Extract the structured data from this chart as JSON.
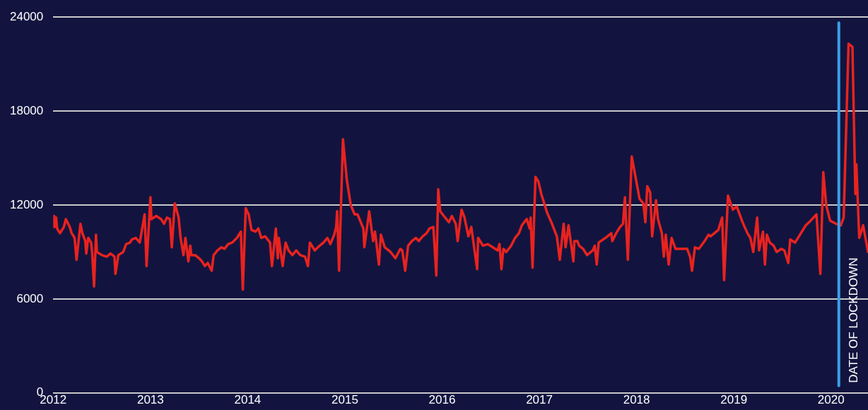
{
  "chart_data": {
    "type": "line",
    "color": "#e8231f",
    "marker": "none",
    "grid": "y",
    "xlim": [
      2012,
      2020.38
    ],
    "xticks": [
      2012,
      2013,
      2014,
      2015,
      2016,
      2017,
      2018,
      2019,
      2020
    ],
    "ylim": [
      0,
      24000
    ],
    "yticks": [
      0,
      6000,
      12000,
      18000,
      24000
    ],
    "x": [
      2012.0,
      2012.01,
      2012.02,
      2012.03,
      2012.04,
      2012.07,
      2012.11,
      2012.13,
      2012.17,
      2012.19,
      2012.22,
      2012.24,
      2012.28,
      2012.3,
      2012.33,
      2012.34,
      2012.36,
      2012.39,
      2012.4,
      2012.42,
      2012.44,
      2012.45,
      2012.5,
      2012.55,
      2012.59,
      2012.63,
      2012.64,
      2012.67,
      2012.72,
      2012.75,
      2012.79,
      2012.81,
      2012.85,
      2012.89,
      2012.94,
      2012.96,
      2013.0,
      2013.01,
      2013.06,
      2013.11,
      2013.14,
      2013.17,
      2013.2,
      2013.22,
      2013.25,
      2013.29,
      2013.31,
      2013.34,
      2013.36,
      2013.39,
      2013.41,
      2013.42,
      2013.46,
      2013.5,
      2013.53,
      2013.56,
      2013.59,
      2013.63,
      2013.65,
      2013.69,
      2013.73,
      2013.76,
      2013.8,
      2013.84,
      2013.89,
      2013.93,
      2013.95,
      2013.98,
      2014.01,
      2014.04,
      2014.08,
      2014.11,
      2014.14,
      2014.18,
      2014.23,
      2014.25,
      2014.29,
      2014.31,
      2014.32,
      2014.36,
      2014.39,
      2014.42,
      2014.46,
      2014.5,
      2014.54,
      2014.59,
      2014.62,
      2014.64,
      2014.69,
      2014.74,
      2014.78,
      2014.82,
      2014.85,
      2014.89,
      2014.91,
      2014.92,
      2014.94,
      2014.98,
      2015.02,
      2015.06,
      2015.1,
      2015.13,
      2015.19,
      2015.2,
      2015.25,
      2015.29,
      2015.31,
      2015.35,
      2015.37,
      2015.41,
      2015.47,
      2015.52,
      2015.57,
      2015.59,
      2015.62,
      2015.65,
      2015.69,
      2015.73,
      2015.76,
      2015.8,
      2015.84,
      2015.87,
      2015.91,
      2015.94,
      2015.96,
      2015.98,
      2016.03,
      2016.07,
      2016.1,
      2016.14,
      2016.16,
      2016.2,
      2016.23,
      2016.27,
      2016.3,
      2016.36,
      2016.37,
      2016.42,
      2016.47,
      2016.52,
      2016.57,
      2016.59,
      2016.61,
      2016.63,
      2016.66,
      2016.71,
      2016.75,
      2016.79,
      2016.82,
      2016.87,
      2016.9,
      2016.91,
      2016.93,
      2016.96,
      2016.99,
      2017.02,
      2017.08,
      2017.13,
      2017.18,
      2017.21,
      2017.25,
      2017.27,
      2017.3,
      2017.35,
      2017.36,
      2017.39,
      2017.41,
      2017.45,
      2017.49,
      2017.55,
      2017.57,
      2017.59,
      2017.61,
      2017.68,
      2017.74,
      2017.75,
      2017.79,
      2017.83,
      2017.86,
      2017.88,
      2017.91,
      2017.95,
      2017.98,
      2018.03,
      2018.07,
      2018.09,
      2018.11,
      2018.14,
      2018.16,
      2018.2,
      2018.22,
      2018.26,
      2018.28,
      2018.3,
      2018.33,
      2018.36,
      2018.4,
      2018.47,
      2018.52,
      2018.55,
      2018.57,
      2018.6,
      2018.64,
      2018.7,
      2018.74,
      2018.76,
      2018.8,
      2018.84,
      2018.88,
      2018.9,
      2018.94,
      2018.99,
      2019.03,
      2019.09,
      2019.14,
      2019.17,
      2019.2,
      2019.24,
      2019.26,
      2019.3,
      2019.32,
      2019.34,
      2019.37,
      2019.41,
      2019.44,
      2019.49,
      2019.52,
      2019.56,
      2019.58,
      2019.63,
      2019.68,
      2019.74,
      2019.79,
      2019.85,
      2019.89,
      2019.92,
      2019.95,
      2019.99,
      2020.05,
      2020.1,
      2020.13,
      2020.18,
      2020.22,
      2020.25,
      2020.26,
      2020.29,
      2020.33,
      2020.38
    ],
    "values": [
      10600,
      11300,
      10600,
      11200,
      10500,
      10200,
      10600,
      11100,
      10600,
      10200,
      9900,
      8500,
      10800,
      10200,
      9700,
      8900,
      9900,
      9600,
      9000,
      6800,
      10100,
      9000,
      8800,
      8700,
      8900,
      8700,
      7600,
      8800,
      9000,
      9500,
      9600,
      9800,
      9900,
      9600,
      11400,
      8100,
      12500,
      11100,
      11300,
      11100,
      10800,
      11200,
      11100,
      9300,
      12100,
      11200,
      9900,
      8800,
      9900,
      8400,
      9400,
      8800,
      8800,
      8600,
      8400,
      8100,
      8300,
      7800,
      8800,
      9100,
      9300,
      9200,
      9500,
      9600,
      9900,
      10300,
      6600,
      11800,
      11400,
      10400,
      10300,
      10500,
      9900,
      10000,
      9600,
      8100,
      10500,
      8600,
      9900,
      8100,
      9600,
      9100,
      8800,
      9100,
      8800,
      8700,
      8100,
      9600,
      9100,
      9400,
      9600,
      9900,
      9500,
      10100,
      10600,
      11600,
      7800,
      16200,
      13600,
      12000,
      11400,
      11400,
      10500,
      9300,
      11600,
      9700,
      10300,
      8200,
      10100,
      9300,
      9000,
      8600,
      9200,
      9100,
      7800,
      9400,
      9700,
      9900,
      9700,
      10000,
      10200,
      10500,
      10600,
      7500,
      13000,
      11600,
      11200,
      10900,
      11300,
      10800,
      9700,
      11700,
      11200,
      10000,
      10600,
      7900,
      9900,
      9400,
      9500,
      9300,
      9100,
      9500,
      7900,
      9200,
      9000,
      9400,
      9900,
      10200,
      10700,
      11100,
      10500,
      11200,
      8000,
      13800,
      13500,
      12700,
      11500,
      10800,
      10000,
      8500,
      10800,
      9300,
      10700,
      8400,
      9700,
      9700,
      9400,
      9200,
      8800,
      9100,
      9400,
      8200,
      9600,
      9900,
      10200,
      9700,
      10200,
      10600,
      10800,
      12500,
      8500,
      15100,
      14100,
      12400,
      12100,
      10900,
      13200,
      12800,
      10000,
      12300,
      11100,
      10200,
      8700,
      10100,
      8200,
      9900,
      9200,
      9200,
      9200,
      8700,
      7800,
      9300,
      9200,
      9700,
      10100,
      10000,
      10200,
      10400,
      11200,
      7200,
      12600,
      11700,
      11900,
      10900,
      10200,
      9900,
      9000,
      11200,
      9100,
      10300,
      8200,
      10100,
      9600,
      9400,
      9000,
      9200,
      9100,
      8300,
      9800,
      9600,
      10100,
      10700,
      11000,
      11400,
      7600,
      14100,
      12000,
      11000,
      10800,
      10700,
      11200,
      22300,
      22100,
      12700,
      14600,
      9900,
      10700,
      9000
    ],
    "ref_lines": [
      {
        "axis": "x",
        "value": 2020.08,
        "label": "DATE OF LOCKDOWN",
        "color": "#3a9fe8"
      }
    ]
  }
}
